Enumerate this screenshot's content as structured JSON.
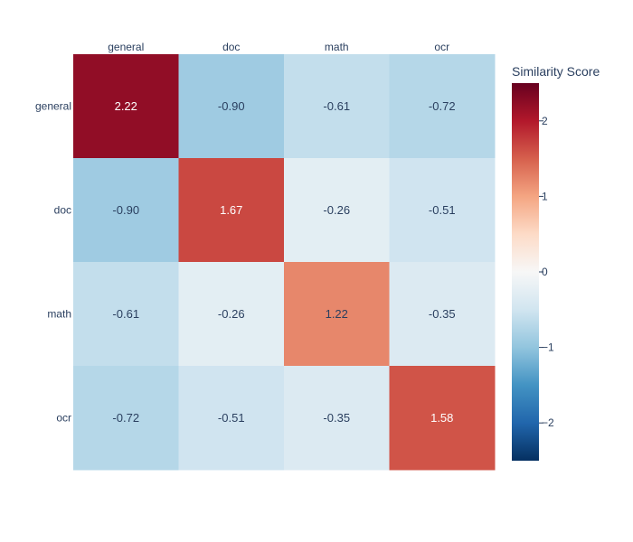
{
  "chart_data": {
    "type": "heatmap",
    "title": "",
    "x_categories": [
      "general",
      "doc",
      "math",
      "ocr"
    ],
    "y_categories": [
      "general",
      "doc",
      "math",
      "ocr"
    ],
    "values": [
      [
        2.22,
        -0.9,
        -0.61,
        -0.72
      ],
      [
        -0.9,
        1.67,
        -0.26,
        -0.51
      ],
      [
        -0.61,
        -0.26,
        1.22,
        -0.35
      ],
      [
        -0.72,
        -0.51,
        -0.35,
        1.58
      ]
    ],
    "value_format": "2 decimals",
    "x_axis_side": "top",
    "colorscale": "RdBu (reversed)",
    "colorscale_stops": [
      "#053061",
      "#2166ac",
      "#4393c3",
      "#92c5de",
      "#d1e5f0",
      "#f7f7f7",
      "#fddbc7",
      "#f4a582",
      "#d6604d",
      "#b2182b",
      "#67001f"
    ],
    "zrange": [
      -2.5,
      2.5
    ],
    "colorbar": {
      "title": "Similarity Score",
      "ticks": [
        2,
        1,
        0,
        -1,
        -2
      ],
      "tick_labels": [
        "2",
        "1",
        "0",
        "−1",
        "−2"
      ]
    },
    "text_colors": {
      "dark": "#2a3f5f",
      "light": "#ffffff"
    }
  }
}
